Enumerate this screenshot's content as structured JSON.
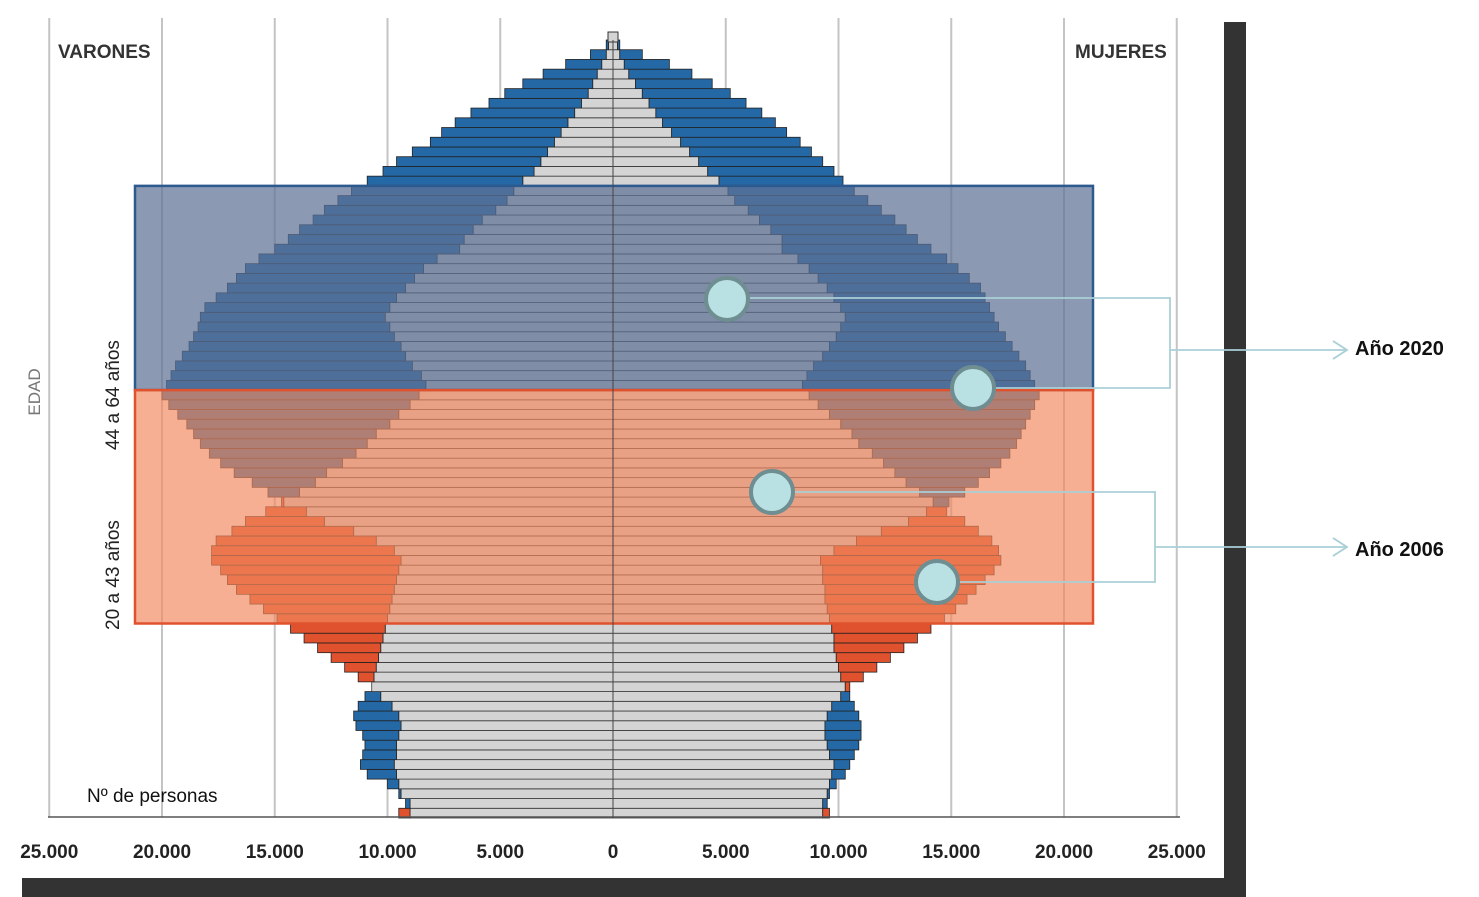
{
  "chart_data": {
    "type": "bar",
    "orientation": "horizontal",
    "layout": "population-pyramid",
    "xlabel": "Nº de personas",
    "ylabel": "EDAD",
    "left_label": "VARONES",
    "right_label": "MUJERES",
    "x_ticks": [
      "25.000",
      "20.000",
      "15.000",
      "10.000",
      "5.000",
      "0",
      "5.000",
      "10.000",
      "15.000",
      "20.000",
      "25.000"
    ],
    "xlim": [
      -25000,
      25000
    ],
    "grid": "vertical",
    "highlight_bands": [
      {
        "label": "44 a 64 años",
        "age_from": 44,
        "age_to": 64,
        "color": "#5e7196"
      },
      {
        "label": "20 a 43 años",
        "age_from": 20,
        "age_to": 43,
        "color": "#f2895f"
      }
    ],
    "callouts": [
      {
        "label": "Año 2020",
        "color": "#2468a6"
      },
      {
        "label": "Año 2006",
        "color": "#e0512e"
      }
    ],
    "series": [
      {
        "name": "Año 2006 Varones",
        "values": [
          9500,
          9000,
          9400,
          9500,
          9600,
          9700,
          9600,
          9600,
          9500,
          9400,
          9500,
          9800,
          10300,
          10700,
          11300,
          11900,
          12500,
          13100,
          13700,
          14300,
          14900,
          15500,
          16100,
          16700,
          17100,
          17400,
          17800,
          17800,
          17600,
          16900,
          16300,
          15400,
          14700,
          13900,
          13200,
          12700,
          12000,
          11400,
          10900,
          10500,
          9900,
          9500,
          9000,
          8600,
          8300,
          8500,
          8900,
          9200,
          9400,
          9700,
          9900,
          10100,
          9900,
          9600,
          9200,
          8800,
          8400,
          7800,
          6800,
          6600,
          6200,
          5800,
          5200,
          4700,
          4400,
          4000,
          3500,
          3200,
          2900,
          2600,
          2300,
          2000,
          1700,
          1400,
          1100,
          900,
          700,
          500,
          300,
          200
        ]
      },
      {
        "name": "Año 2006 Mujeres",
        "values": [
          9600,
          9300,
          9500,
          9600,
          9700,
          9800,
          9600,
          9500,
          9400,
          9400,
          9500,
          9700,
          10100,
          10500,
          11100,
          11700,
          12300,
          12900,
          13500,
          14100,
          14700,
          15200,
          15700,
          16100,
          16500,
          16900,
          17200,
          17100,
          16800,
          16200,
          15600,
          14800,
          14200,
          13600,
          13000,
          12500,
          12000,
          11500,
          10900,
          10600,
          10100,
          9600,
          9100,
          8700,
          8400,
          8600,
          8900,
          9300,
          9600,
          9900,
          10100,
          10300,
          10100,
          9800,
          9500,
          9100,
          8700,
          8200,
          7500,
          7500,
          7000,
          6500,
          6000,
          5400,
          5100,
          4700,
          4200,
          3800,
          3400,
          3000,
          2600,
          2200,
          1900,
          1600,
          1300,
          1000,
          700,
          500,
          300,
          200
        ]
      },
      {
        "name": "Año 2020 Varones",
        "values": [
          9000,
          9200,
          9500,
          10000,
          10900,
          11200,
          11100,
          11000,
          11100,
          11400,
          11500,
          11300,
          11000,
          10700,
          10600,
          10500,
          10400,
          10300,
          10200,
          10100,
          10000,
          9900,
          9800,
          9700,
          9600,
          9500,
          9400,
          9700,
          10500,
          11500,
          12800,
          13600,
          14600,
          15300,
          16000,
          16800,
          17400,
          17900,
          18300,
          18600,
          18900,
          19300,
          19700,
          20000,
          19800,
          19600,
          19400,
          19100,
          18800,
          18600,
          18400,
          18300,
          18100,
          17600,
          17100,
          16700,
          16300,
          15700,
          15000,
          14400,
          13900,
          13300,
          12800,
          12200,
          11600,
          10900,
          10200,
          9600,
          8900,
          8100,
          7600,
          7000,
          6300,
          5500,
          4800,
          4000,
          3100,
          2100,
          1000,
          300
        ]
      },
      {
        "name": "Año 2020 Mujeres",
        "values": [
          9300,
          9500,
          9600,
          9900,
          10300,
          10500,
          10700,
          10900,
          11000,
          11000,
          10900,
          10700,
          10500,
          10300,
          10100,
          10000,
          9900,
          9800,
          9800,
          9700,
          9600,
          9500,
          9400,
          9400,
          9300,
          9300,
          9200,
          9800,
          10800,
          11900,
          13100,
          13900,
          14900,
          15600,
          16200,
          16700,
          17200,
          17600,
          17900,
          18100,
          18300,
          18500,
          18700,
          18900,
          18700,
          18500,
          18300,
          18000,
          17700,
          17400,
          17100,
          16900,
          16700,
          16500,
          16300,
          15800,
          15300,
          14800,
          14100,
          13500,
          13000,
          12500,
          11900,
          11300,
          10700,
          10200,
          9800,
          9300,
          8800,
          8300,
          7700,
          7200,
          6600,
          5900,
          5200,
          4400,
          3500,
          2500,
          1300,
          300
        ]
      }
    ]
  },
  "colors": {
    "male_2020": "#2468a6",
    "female_2006_accent": "#e0512e",
    "bar_fill": "#d4d4d4",
    "band_upper": "#5e7196",
    "band_lower": "#f2895f",
    "callout_line": "#a9cfd6",
    "callout_dot": "#b9e1e3"
  }
}
